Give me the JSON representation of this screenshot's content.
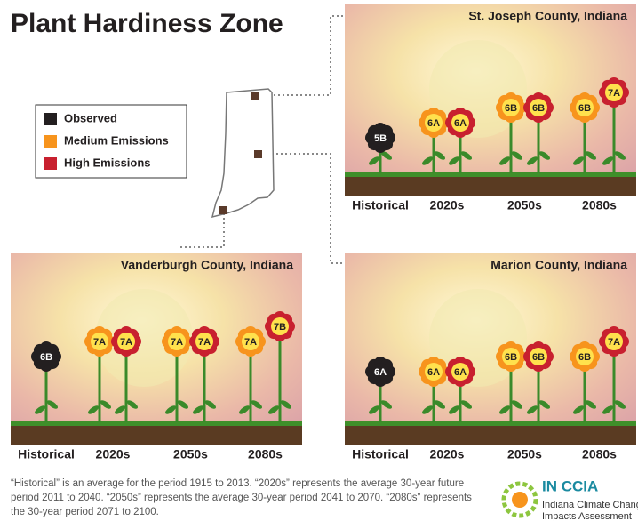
{
  "title": "Plant Hardiness Zone",
  "legend": [
    {
      "label": "Observed",
      "color": "#231f20"
    },
    {
      "label": "Medium Emissions",
      "color": "#f7941d"
    },
    {
      "label": "High Emissions",
      "color": "#c8202f"
    }
  ],
  "panels": [
    {
      "title": "St. Joseph County, Indiana",
      "periods": [
        {
          "label": "Historical",
          "zones": [
            "5B"
          ]
        },
        {
          "label": "2020s",
          "zones": [
            "6A",
            "6A"
          ]
        },
        {
          "label": "2050s",
          "zones": [
            "6B",
            "6B"
          ]
        },
        {
          "label": "2080s",
          "zones": [
            "6B",
            "7A"
          ]
        }
      ]
    },
    {
      "title": "Vanderburgh County, Indiana",
      "periods": [
        {
          "label": "Historical",
          "zones": [
            "6B"
          ]
        },
        {
          "label": "2020s",
          "zones": [
            "7A",
            "7A"
          ]
        },
        {
          "label": "2050s",
          "zones": [
            "7A",
            "7A"
          ]
        },
        {
          "label": "2080s",
          "zones": [
            "7A",
            "7B"
          ]
        }
      ]
    },
    {
      "title": "Marion County, Indiana",
      "periods": [
        {
          "label": "Historical",
          "zones": [
            "6A"
          ]
        },
        {
          "label": "2020s",
          "zones": [
            "6A",
            "6A"
          ]
        },
        {
          "label": "2050s",
          "zones": [
            "6B",
            "6B"
          ]
        },
        {
          "label": "2080s",
          "zones": [
            "6B",
            "7A"
          ]
        }
      ]
    }
  ],
  "footnote": "“Historical” is an average for the period 1915 to 2013. “2020s” represents the average 30-year future period 2011 to 2040. “2050s” represents the average 30-year period 2041 to 2070. “2080s” represents the 30-year period 2071 to 2100.",
  "logo": {
    "name": "IN CCIA",
    "line1": "Indiana Climate Change",
    "line2": "Impacts Assessment"
  }
}
